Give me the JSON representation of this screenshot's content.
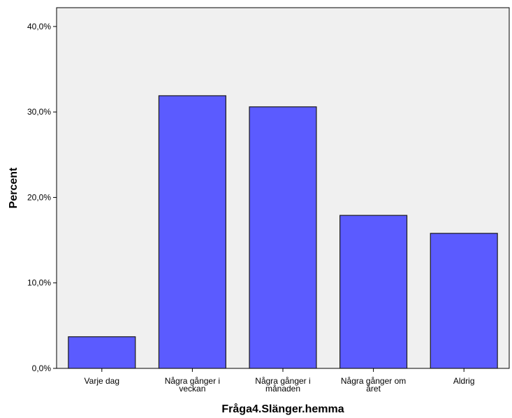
{
  "chart_data": {
    "type": "bar",
    "title": "",
    "xlabel": "Fråga4.Slänger.hemma",
    "ylabel": "Percent",
    "categories": [
      [
        "Varje dag"
      ],
      [
        "Några gånger i",
        "veckan"
      ],
      [
        "Några gånger i",
        "månaden"
      ],
      [
        "Några gånger om",
        "året"
      ],
      [
        "Aldrig"
      ]
    ],
    "values": [
      3.7,
      31.9,
      30.6,
      17.9,
      15.8
    ],
    "ylim": [
      0,
      42.2
    ],
    "yticks": [
      0,
      10,
      20,
      30,
      40
    ],
    "ytick_labels": [
      "0,0%",
      "10,0%",
      "20,0%",
      "30,0%",
      "40,0%"
    ],
    "grid": false,
    "colors": {
      "bar_fill": "#5b5bff",
      "bar_stroke": "#1a1a1a",
      "plot_bg": "#f0f0f0"
    }
  }
}
